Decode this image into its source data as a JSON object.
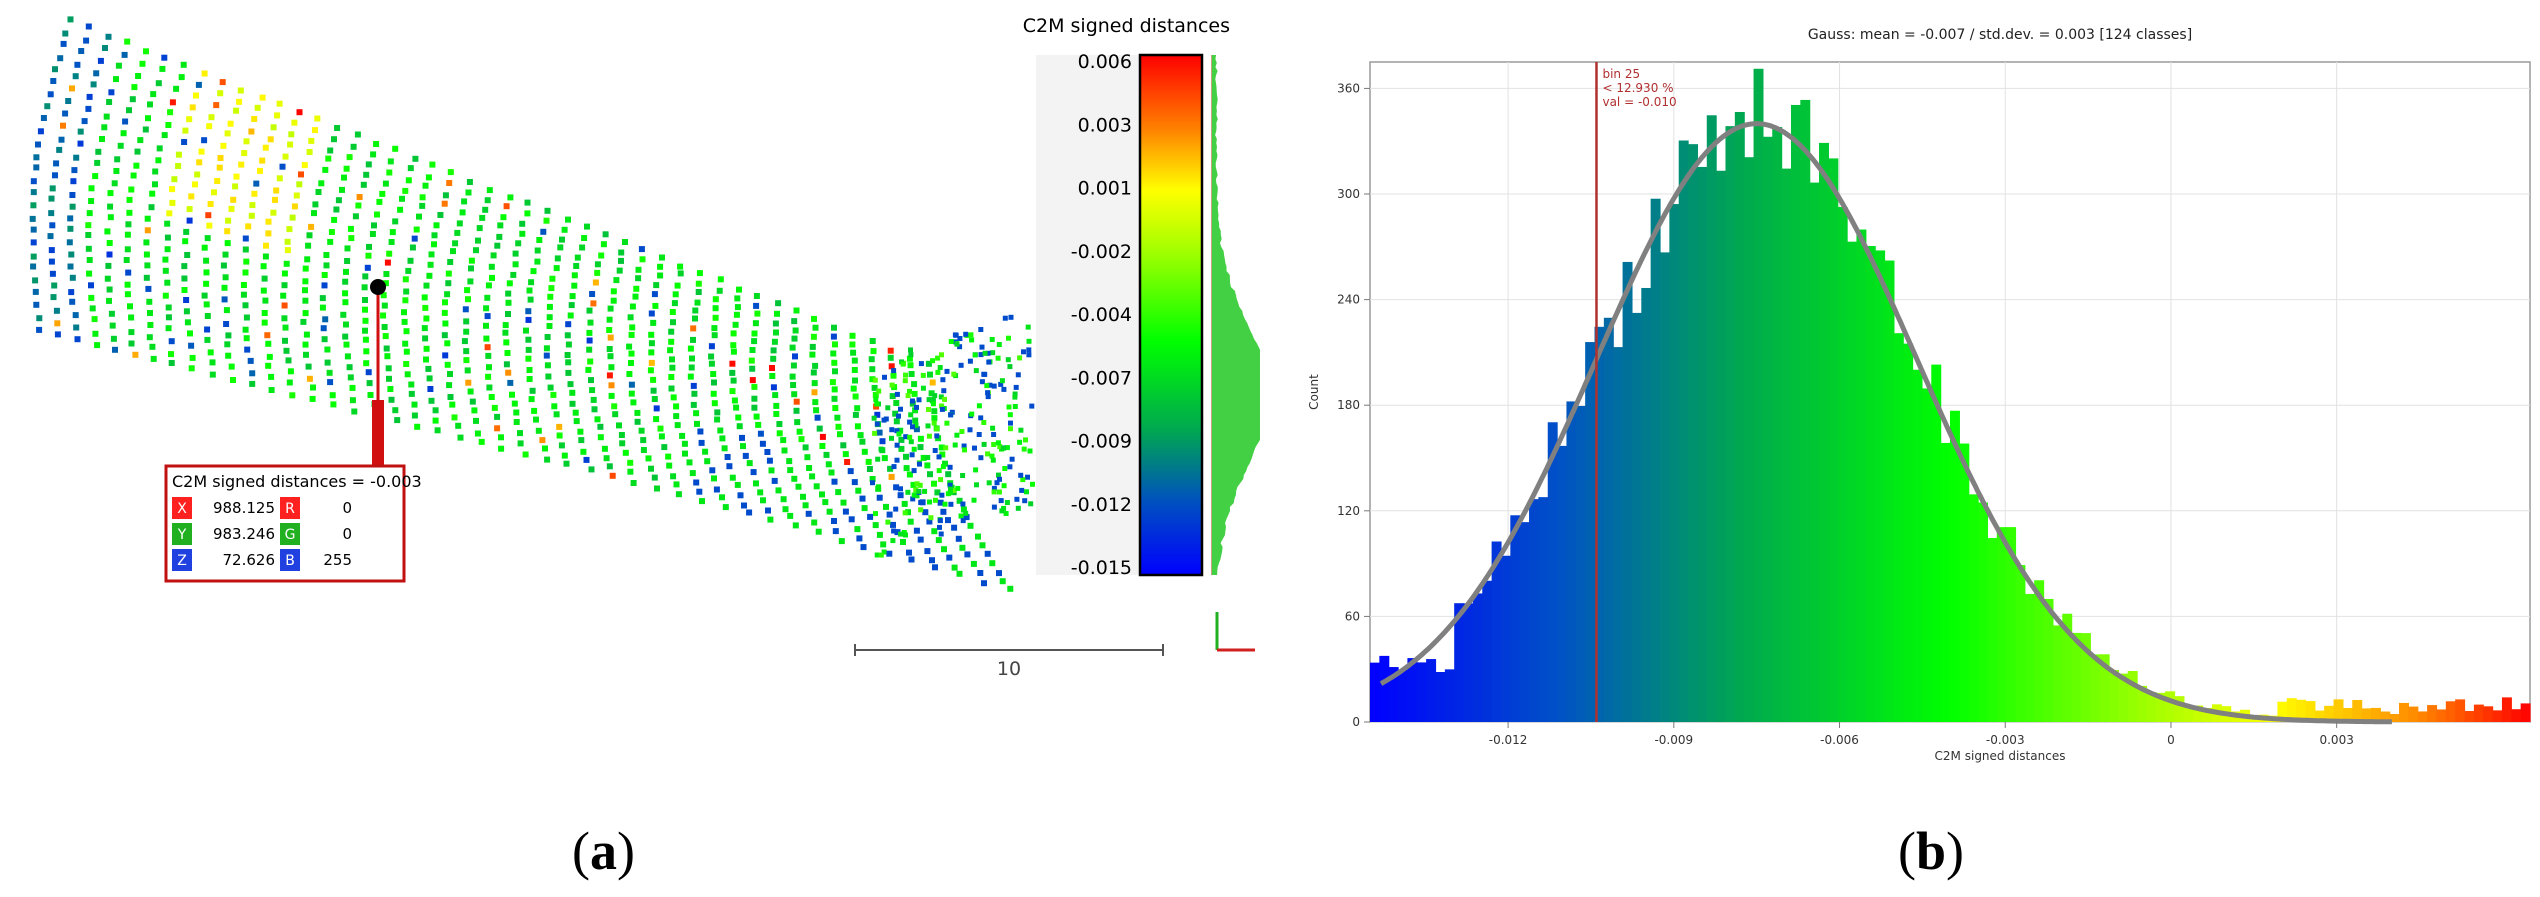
{
  "panel_a": {
    "label_open": "(",
    "label_letter": "a",
    "label_close": ")",
    "colorbar_title": "C2M signed distances",
    "colorbar_ticks": [
      "0.006",
      "0.003",
      "0.001",
      "-0.002",
      "-0.004",
      "-0.007",
      "-0.009",
      "-0.012",
      "-0.015"
    ],
    "colorbar_stops": [
      "#ff0000",
      "#ff7f00",
      "#ffff00",
      "#80ff00",
      "#00ff00",
      "#00a850",
      "#0050c0",
      "#0000ff"
    ],
    "scale_bar_label": "10",
    "tooltip": {
      "title": "C2M signed distances = -0.003",
      "rows": [
        {
          "k1": "X",
          "v1": "988.125",
          "k2": "R",
          "v2": "0",
          "c1": "#ff2020",
          "c2": "#ff2020"
        },
        {
          "k1": "Y",
          "v1": "983.246",
          "k2": "G",
          "v2": "0",
          "c1": "#20b020",
          "c2": "#20b020"
        },
        {
          "k1": "Z",
          "v1": "72.626",
          "k2": "B",
          "v2": "255",
          "c1": "#2040e0",
          "c2": "#2040e0"
        }
      ]
    }
  },
  "panel_b": {
    "label_open": "(",
    "label_letter": "b",
    "label_close": ")"
  },
  "chart_data": {
    "type": "bar",
    "title": "Gauss: mean = -0.007 / std.dev. = 0.003 [124 classes]",
    "xlabel": "C2M signed distances",
    "ylabel": "Count",
    "xlim": [
      -0.0145,
      0.0065
    ],
    "ylim": [
      0,
      375
    ],
    "xticks": [
      -0.012,
      -0.009,
      -0.006,
      -0.003,
      0,
      0.003
    ],
    "xtick_labels": [
      "-0.012",
      "-0.009",
      "-0.006",
      "-0.003",
      "0",
      "0.003"
    ],
    "yticks": [
      0,
      60,
      120,
      180,
      240,
      300,
      360
    ],
    "ytick_labels": [
      "0",
      "60",
      "120",
      "180",
      "240",
      "300",
      "360"
    ],
    "bins": 124,
    "gauss_mean": -0.0075,
    "gauss_peak": 340,
    "gauss_std": 0.0029,
    "marker": {
      "x": -0.0104,
      "lines": [
        "bin 25",
        "< 12.930 %",
        "val = -0.010"
      ]
    },
    "grid": true,
    "legend": "none"
  }
}
